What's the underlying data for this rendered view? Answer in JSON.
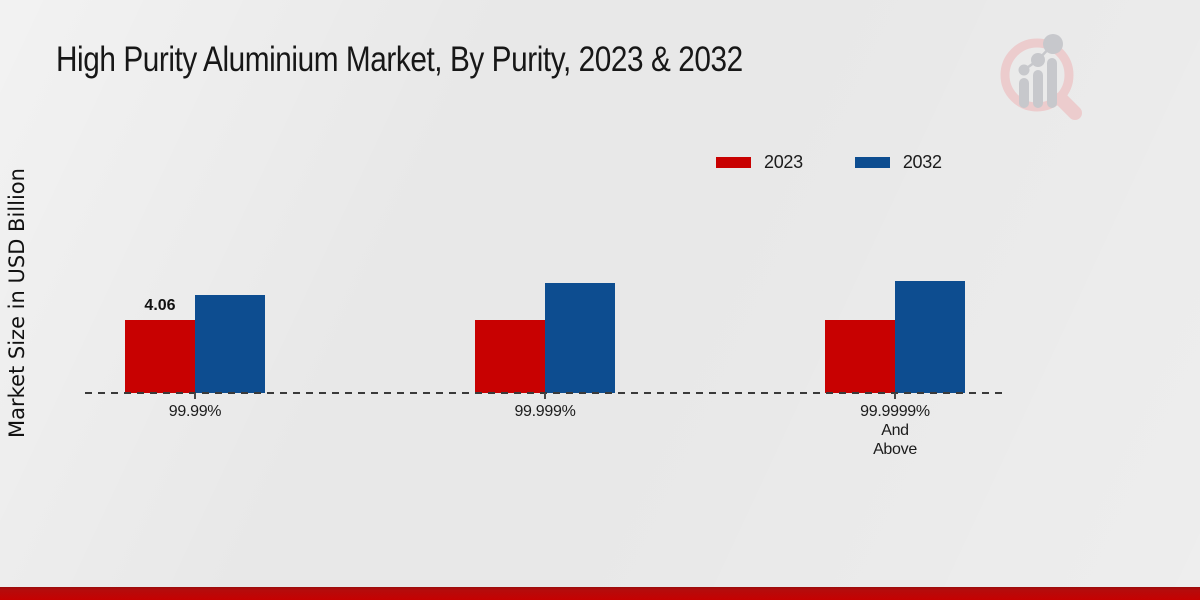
{
  "title": "High Purity Aluminium Market, By Purity, 2023 & 2032",
  "logo": {
    "name": "market-research-future-watermark"
  },
  "footer": {
    "color": "#c00000"
  },
  "chart_data": {
    "type": "bar",
    "title": "High Purity Aluminium Market, By Purity, 2023 & 2032",
    "xlabel": "",
    "ylabel": "Market Size in USD Billion",
    "categories": [
      "99.99%",
      "99.999%",
      "99.9999%\nAnd\nAbove"
    ],
    "series": [
      {
        "name": "2023",
        "color": "#c80101",
        "values": [
          4.06,
          4.06,
          4.06
        ],
        "data_labels": [
          "4.06",
          "",
          ""
        ]
      },
      {
        "name": "2032",
        "color": "#0d4d90",
        "values": [
          5.45,
          6.1,
          6.2
        ],
        "data_labels": [
          "",
          "",
          ""
        ]
      }
    ],
    "ylim": [
      0,
      7
    ],
    "y_axis_ticks_visible": false,
    "grid": false,
    "baseline_style": "dashed",
    "legend_position": "top-right"
  }
}
